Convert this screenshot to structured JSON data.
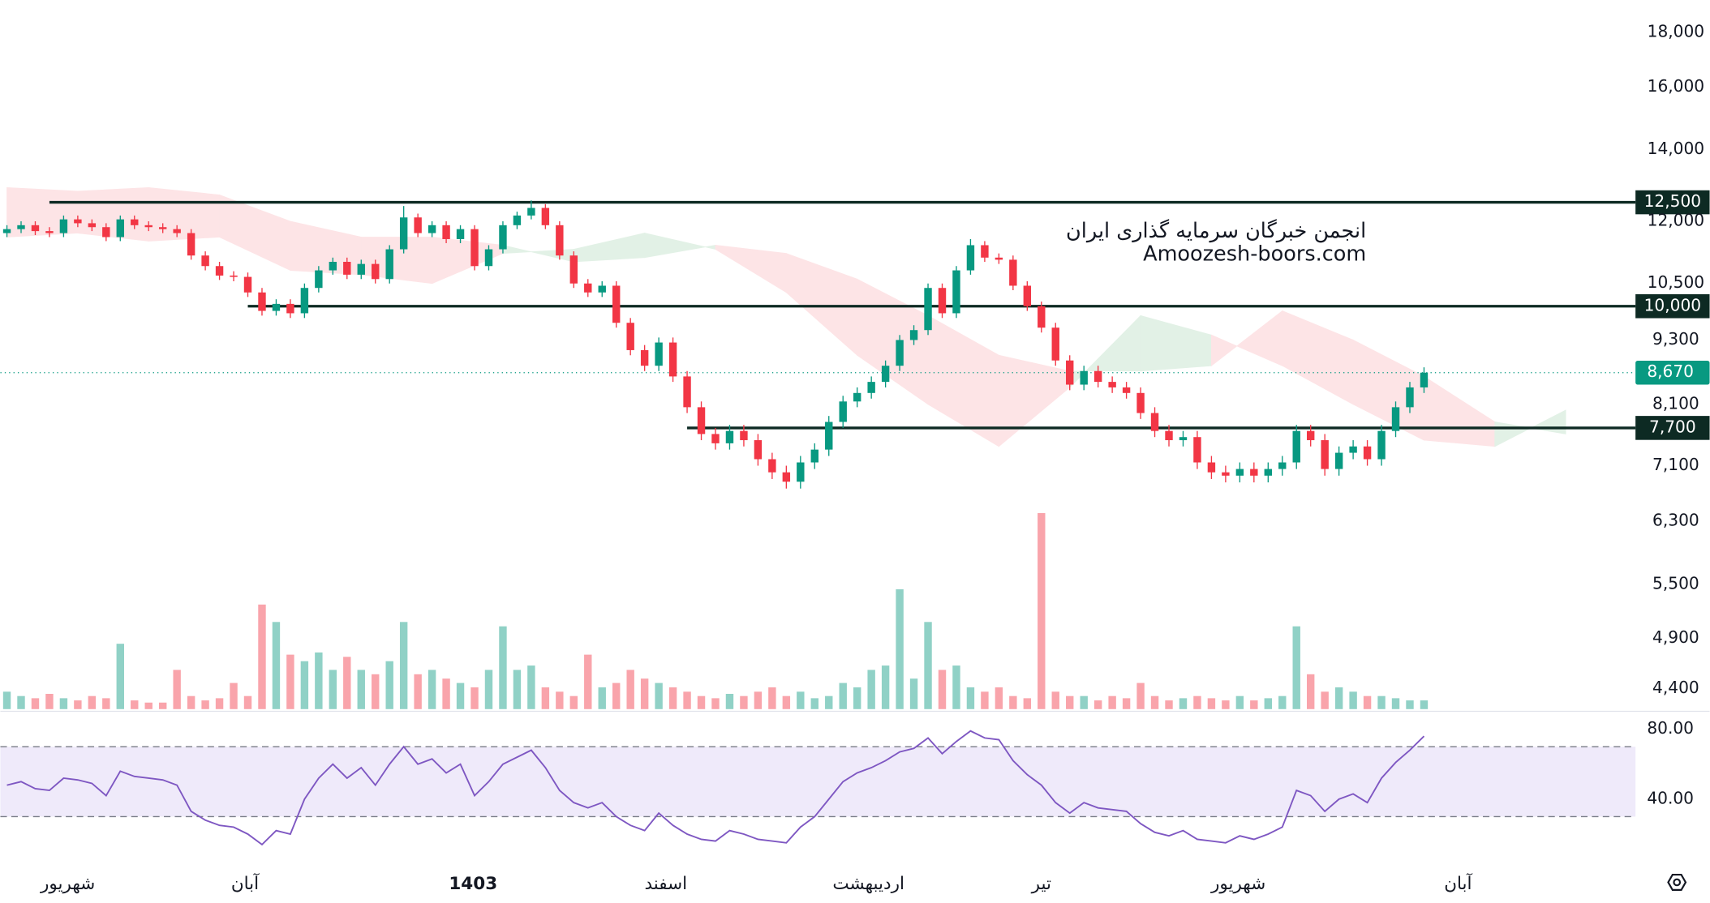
{
  "chart_data": {
    "type": "candlestick",
    "log_scale": true,
    "ylim": [
      4200,
      19300
    ],
    "yticks": [
      {
        "value": 4400,
        "label": "4,400"
      },
      {
        "value": 4900,
        "label": "4,900"
      },
      {
        "value": 5500,
        "label": "5,500"
      },
      {
        "value": 6300,
        "label": "6,300"
      },
      {
        "value": 7100,
        "label": "7,100"
      },
      {
        "value": 8100,
        "label": "8,100"
      },
      {
        "value": 9300,
        "label": "9,300"
      },
      {
        "value": 10500,
        "label": "10,500"
      },
      {
        "value": 12000,
        "label": "12,000"
      },
      {
        "value": 14000,
        "label": "14,000"
      },
      {
        "value": 16000,
        "label": "16,000"
      },
      {
        "value": 18000,
        "label": "18,000"
      }
    ],
    "xticks": [
      {
        "value": 4.3,
        "label": "شهریور"
      },
      {
        "value": 16.8,
        "label": "آبان"
      },
      {
        "value": 32.9,
        "label": "1403",
        "bold": true
      },
      {
        "value": 46.5,
        "label": "اسفند"
      },
      {
        "value": 60.8,
        "label": "اردیبهشت"
      },
      {
        "value": 73,
        "label": "تیر"
      },
      {
        "value": 86.9,
        "label": "شهریور"
      },
      {
        "value": 102.4,
        "label": "آبان"
      }
    ],
    "up_color": "#089981",
    "down_color": "#f23645",
    "ohlc": [
      [
        11700,
        11900,
        11600,
        11800
      ],
      [
        11800,
        12000,
        11700,
        11900
      ],
      [
        11900,
        12000,
        11650,
        11750
      ],
      [
        11750,
        11850,
        11600,
        11700
      ],
      [
        11700,
        12150,
        11600,
        12050
      ],
      [
        12050,
        12150,
        11850,
        11950
      ],
      [
        11950,
        12050,
        11750,
        11850
      ],
      [
        11850,
        11950,
        11500,
        11600
      ],
      [
        11600,
        12150,
        11500,
        12050
      ],
      [
        12050,
        12150,
        11800,
        11900
      ],
      [
        11900,
        12000,
        11750,
        11850
      ],
      [
        11850,
        11950,
        11700,
        11800
      ],
      [
        11800,
        11900,
        11600,
        11700
      ],
      [
        11700,
        11800,
        11050,
        11150
      ],
      [
        11150,
        11250,
        10800,
        10900
      ],
      [
        10900,
        11000,
        10580,
        10680
      ],
      [
        10680,
        10780,
        10550,
        10650
      ],
      [
        10650,
        10750,
        10200,
        10300
      ],
      [
        10300,
        10400,
        9800,
        9900
      ],
      [
        9900,
        10150,
        9800,
        10050
      ],
      [
        10050,
        10150,
        9750,
        9850
      ],
      [
        9850,
        10500,
        9750,
        10400
      ],
      [
        10400,
        10900,
        10300,
        10800
      ],
      [
        10800,
        11100,
        10700,
        11000
      ],
      [
        11000,
        11100,
        10600,
        10700
      ],
      [
        10700,
        11050,
        10600,
        10950
      ],
      [
        10950,
        11050,
        10500,
        10600
      ],
      [
        10600,
        11400,
        10500,
        11300
      ],
      [
        11300,
        12400,
        11200,
        12100
      ],
      [
        12100,
        12200,
        11600,
        11700
      ],
      [
        11700,
        12000,
        11600,
        11900
      ],
      [
        11900,
        12000,
        11450,
        11550
      ],
      [
        11550,
        11900,
        11450,
        11800
      ],
      [
        11800,
        11900,
        10800,
        10900
      ],
      [
        10900,
        11400,
        10800,
        11300
      ],
      [
        11300,
        12000,
        11200,
        11900
      ],
      [
        11900,
        12250,
        11800,
        12150
      ],
      [
        12150,
        12550,
        12050,
        12350
      ],
      [
        12350,
        12450,
        11800,
        11900
      ],
      [
        11900,
        12000,
        11050,
        11150
      ],
      [
        11150,
        11250,
        10400,
        10500
      ],
      [
        10500,
        10600,
        10200,
        10300
      ],
      [
        10300,
        10550,
        10200,
        10450
      ],
      [
        10450,
        10550,
        9550,
        9650
      ],
      [
        9650,
        9750,
        9000,
        9100
      ],
      [
        9100,
        9200,
        8700,
        8800
      ],
      [
        8800,
        9350,
        8700,
        9250
      ],
      [
        9250,
        9350,
        8500,
        8600
      ],
      [
        8600,
        8700,
        7950,
        8050
      ],
      [
        8050,
        8150,
        7500,
        7600
      ],
      [
        7600,
        7700,
        7350,
        7450
      ],
      [
        7450,
        7750,
        7350,
        7650
      ],
      [
        7650,
        7750,
        7400,
        7500
      ],
      [
        7500,
        7600,
        7100,
        7200
      ],
      [
        7200,
        7300,
        6900,
        7000
      ],
      [
        7000,
        7100,
        6760,
        6860
      ],
      [
        6860,
        7250,
        6760,
        7150
      ],
      [
        7150,
        7450,
        7050,
        7350
      ],
      [
        7350,
        7900,
        7250,
        7800
      ],
      [
        7800,
        8250,
        7700,
        8150
      ],
      [
        8150,
        8400,
        8050,
        8300
      ],
      [
        8300,
        8600,
        8200,
        8500
      ],
      [
        8500,
        8900,
        8400,
        8800
      ],
      [
        8800,
        9400,
        8700,
        9300
      ],
      [
        9300,
        9600,
        9200,
        9500
      ],
      [
        9500,
        10500,
        9400,
        10400
      ],
      [
        10400,
        10500,
        9750,
        9850
      ],
      [
        9850,
        10900,
        9750,
        10800
      ],
      [
        10800,
        11550,
        10700,
        11400
      ],
      [
        11400,
        11500,
        11000,
        11100
      ],
      [
        11100,
        11200,
        10950,
        11050
      ],
      [
        11050,
        11150,
        10350,
        10450
      ],
      [
        10450,
        10550,
        9900,
        10000
      ],
      [
        10000,
        10100,
        9450,
        9550
      ],
      [
        9550,
        9650,
        8800,
        8900
      ],
      [
        8900,
        9000,
        8350,
        8450
      ],
      [
        8450,
        8800,
        8350,
        8700
      ],
      [
        8700,
        8800,
        8400,
        8500
      ],
      [
        8500,
        8600,
        8300,
        8400
      ],
      [
        8400,
        8500,
        8200,
        8300
      ],
      [
        8300,
        8400,
        7850,
        7950
      ],
      [
        7950,
        8050,
        7550,
        7650
      ],
      [
        7650,
        7750,
        7400,
        7500
      ],
      [
        7500,
        7650,
        7400,
        7550
      ],
      [
        7550,
        7650,
        7050,
        7150
      ],
      [
        7150,
        7250,
        6900,
        7000
      ],
      [
        7000,
        7100,
        6850,
        6950
      ],
      [
        6950,
        7150,
        6850,
        7050
      ],
      [
        7050,
        7150,
        6850,
        6950
      ],
      [
        6950,
        7150,
        6850,
        7050
      ],
      [
        7050,
        7250,
        6950,
        7150
      ],
      [
        7150,
        7750,
        7050,
        7650
      ],
      [
        7650,
        7750,
        7400,
        7500
      ],
      [
        7500,
        7600,
        6950,
        7050
      ],
      [
        7050,
        7400,
        6950,
        7300
      ],
      [
        7300,
        7500,
        7200,
        7400
      ],
      [
        7400,
        7500,
        7100,
        7200
      ],
      [
        7200,
        7750,
        7100,
        7650
      ],
      [
        7650,
        8150,
        7550,
        8050
      ],
      [
        8050,
        8500,
        7950,
        8400
      ],
      [
        8400,
        8770,
        8300,
        8670
      ]
    ],
    "volume": {
      "lim": [
        0,
        100
      ],
      "values": [
        8,
        6,
        5,
        7,
        5,
        4,
        6,
        5,
        30,
        4,
        3,
        3,
        18,
        6,
        4,
        5,
        12,
        6,
        48,
        40,
        25,
        22,
        26,
        18,
        24,
        18,
        16,
        22,
        40,
        16,
        18,
        14,
        12,
        10,
        18,
        38,
        18,
        20,
        10,
        8,
        6,
        25,
        10,
        12,
        18,
        14,
        12,
        10,
        8,
        6,
        5,
        7,
        6,
        8,
        10,
        6,
        8,
        5,
        6,
        12,
        10,
        18,
        20,
        55,
        14,
        40,
        18,
        20,
        10,
        8,
        10,
        6,
        5,
        90,
        8,
        6,
        6,
        4,
        6,
        5,
        12,
        6,
        4,
        5,
        6,
        5,
        4,
        6,
        4,
        5,
        6,
        38,
        16,
        8,
        10,
        8,
        6,
        6,
        5,
        4,
        4
      ]
    },
    "cloud": {
      "up_color": "#e2f1e6",
      "down_color": "#fde4e6",
      "x": [
        0,
        5,
        10,
        15,
        20,
        25,
        30,
        35,
        40,
        45,
        50,
        55,
        60,
        65,
        70,
        75,
        80,
        85,
        90,
        95,
        100,
        105,
        110
      ],
      "span_a": [
        11600,
        11700,
        11500,
        11600,
        10800,
        10700,
        10500,
        11200,
        11300,
        11700,
        11300,
        10300,
        9000,
        8100,
        7400,
        8400,
        9800,
        9400,
        8800,
        8100,
        7500,
        7400,
        8000
      ],
      "span_b": [
        12900,
        12800,
        12900,
        12700,
        12000,
        11600,
        11600,
        11400,
        11000,
        11100,
        11400,
        11200,
        10600,
        9800,
        9000,
        8700,
        8700,
        8800,
        9900,
        9300,
        8600,
        7800,
        7600
      ]
    },
    "levels": [
      {
        "value": 12500,
        "label": "12,500",
        "from": 3
      },
      {
        "value": 10000,
        "label": "10,000",
        "from": 17
      },
      {
        "value": 7700,
        "label": "7,700",
        "from": 48
      }
    ],
    "level_color": "#0d2a23",
    "last_price": {
      "value": 8670,
      "label": "8,670",
      "color": "#089981"
    },
    "rsi": {
      "color": "#7e57c2",
      "band_color": "#efeafa",
      "ylim": [
        8,
        89
      ],
      "yticks": [
        {
          "value": 40,
          "label": "40.00"
        },
        {
          "value": 80,
          "label": "80.00"
        }
      ],
      "bands": [
        30,
        70
      ],
      "values": [
        48,
        50,
        46,
        45,
        52,
        51,
        49,
        42,
        56,
        53,
        52,
        51,
        48,
        33,
        28,
        25,
        24,
        20,
        14,
        22,
        20,
        40,
        52,
        60,
        52,
        58,
        48,
        60,
        70,
        60,
        63,
        55,
        60,
        42,
        50,
        60,
        64,
        68,
        58,
        45,
        38,
        35,
        38,
        30,
        25,
        22,
        32,
        25,
        20,
        17,
        16,
        22,
        20,
        17,
        16,
        15,
        24,
        30,
        40,
        50,
        55,
        58,
        62,
        67,
        69,
        75,
        66,
        73,
        79,
        75,
        74,
        62,
        54,
        48,
        38,
        32,
        38,
        35,
        34,
        33,
        26,
        21,
        19,
        22,
        17,
        16,
        15,
        19,
        17,
        20,
        24,
        45,
        42,
        33,
        40,
        43,
        38,
        52,
        61,
        68,
        76
      ]
    },
    "watermark": [
      "انجمن خبرگان سرمایه گذاری ایران",
      "Amoozesh-boors.com"
    ]
  }
}
